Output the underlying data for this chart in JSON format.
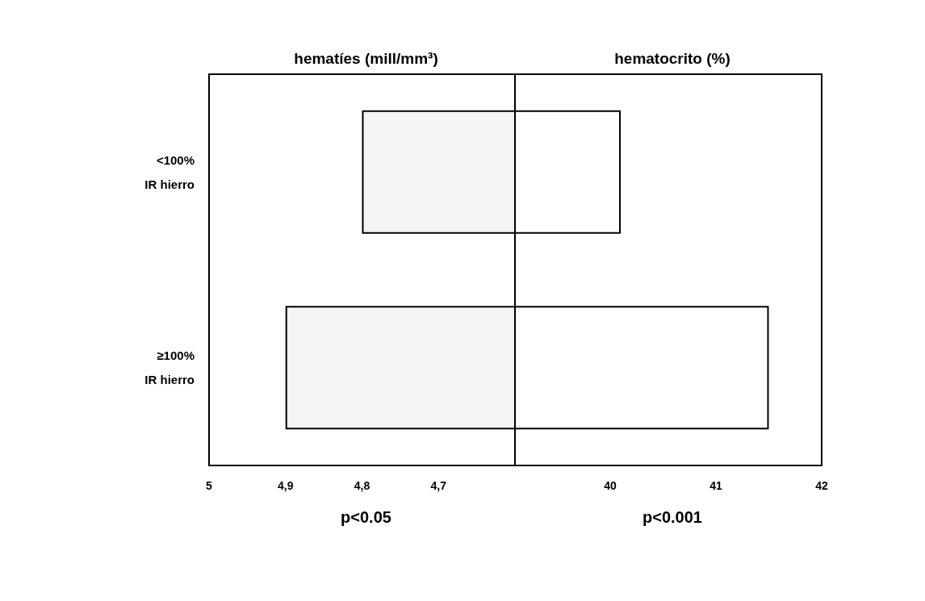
{
  "chart_data": [
    {
      "type": "bar",
      "orientation": "horizontal",
      "title": "hematíes (mill/mm³)",
      "categories": [
        "<100%\nIR hierro",
        "≥100%\nIR hierro"
      ],
      "series": [
        {
          "color": "#f4f4f4",
          "values": [
            4.8,
            4.9
          ]
        }
      ],
      "xlim": [
        5,
        4.6
      ],
      "xticks": [
        5,
        {
          "value": 4.9,
          "label": "4,9"
        },
        {
          "value": 4.8,
          "label": "4,8"
        },
        {
          "value": 4.7,
          "label": "4,7"
        }
      ],
      "grid": false,
      "annotations": [
        "p<0.05"
      ]
    },
    {
      "type": "bar",
      "orientation": "horizontal",
      "title": "hematocrito (%)",
      "categories": [
        null,
        null
      ],
      "series": [
        {
          "color": "#ffffff",
          "values": [
            40.1,
            41.5
          ]
        }
      ],
      "xlim": [
        39.1,
        42
      ],
      "xticks": [
        40,
        41,
        42
      ],
      "grid": false,
      "annotations": [
        "p<0.001"
      ]
    }
  ]
}
